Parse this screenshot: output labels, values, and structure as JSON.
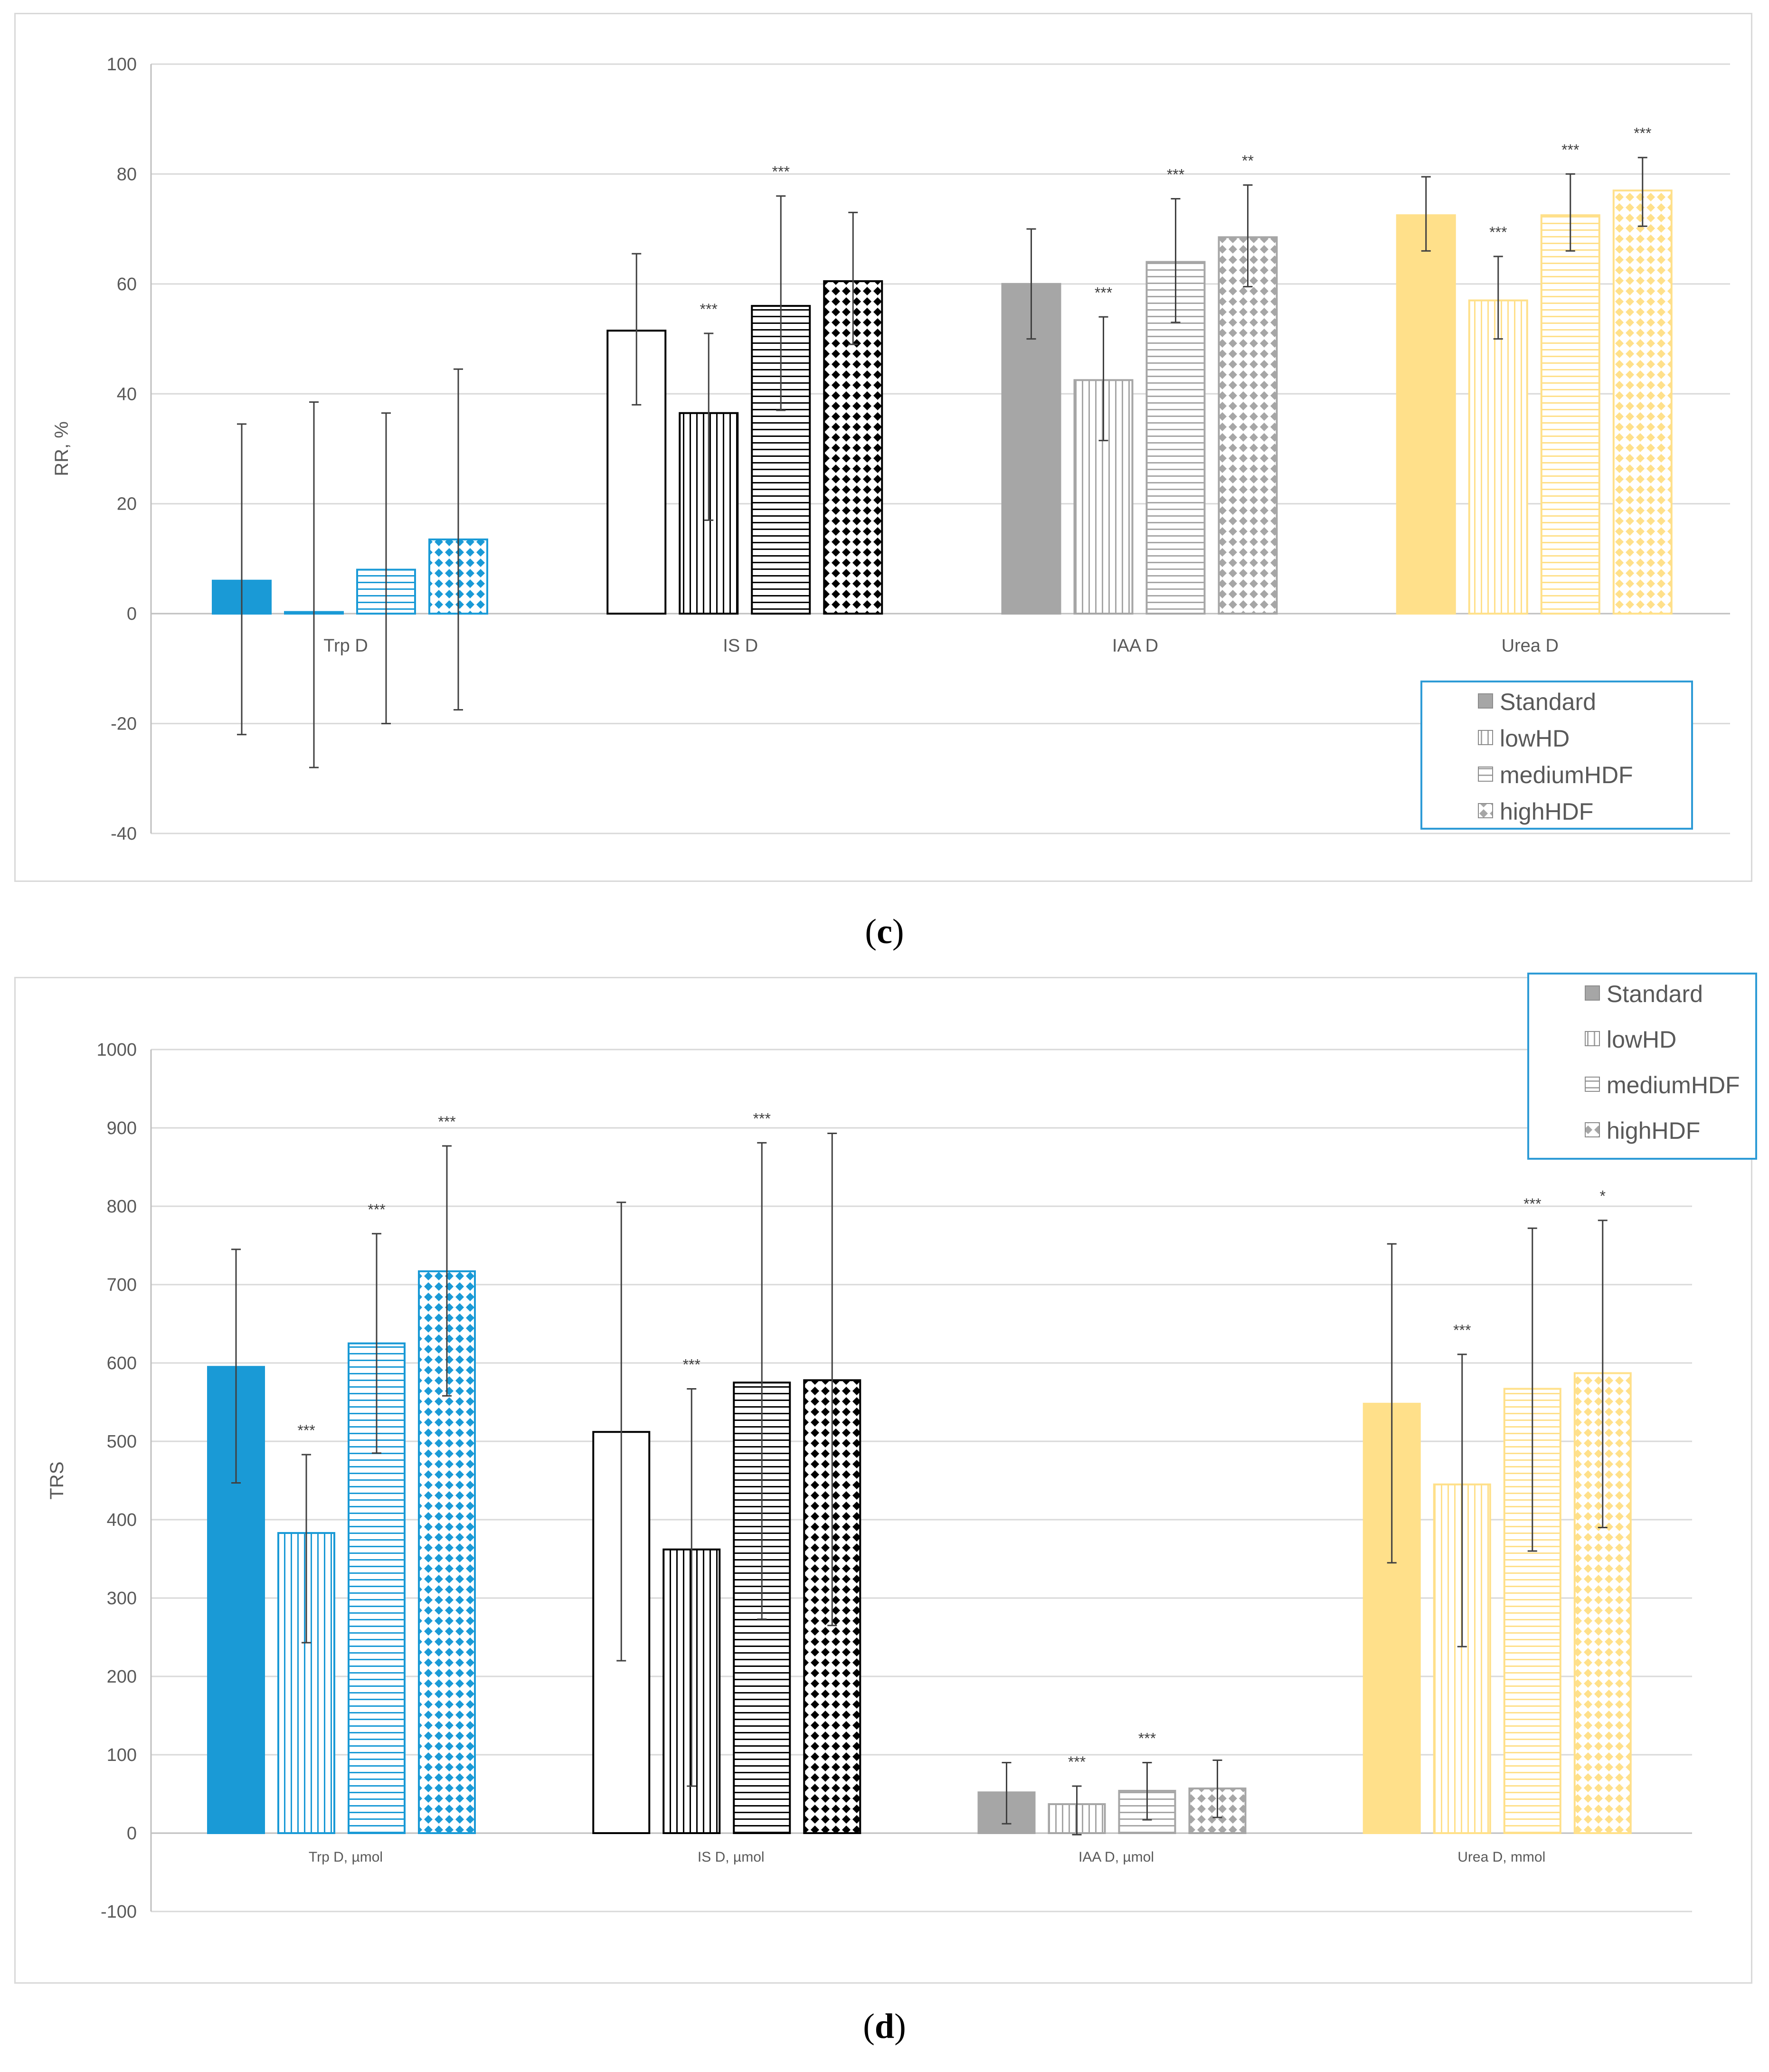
{
  "chart_data": [
    {
      "panel": "c",
      "type": "bar",
      "ylabel": "RR, %",
      "ylim": [
        -40,
        100
      ],
      "yticks": [
        100,
        80,
        60,
        40,
        20,
        0,
        -20,
        -40
      ],
      "grid": true,
      "legend_placement": "bottom-right",
      "categories": [
        "Trp D",
        "IS D",
        "IAA D",
        "Urea D"
      ],
      "category_colors": [
        "#1a9ad6",
        "#000000",
        "#a6a6a6",
        "#ffe08a"
      ],
      "series": [
        {
          "name": "Standard",
          "values": [
            6,
            51.5,
            60,
            72.5
          ],
          "err_low": [
            -22,
            38,
            50,
            66
          ],
          "err_high": [
            34.5,
            65.5,
            70,
            79.5
          ],
          "sig": [
            "",
            "",
            "",
            ""
          ]
        },
        {
          "name": "lowHD",
          "values": [
            0.3,
            36.5,
            42.5,
            57
          ],
          "err_low": [
            -28,
            17,
            31.5,
            50
          ],
          "err_high": [
            38.5,
            51,
            54,
            65
          ],
          "sig": [
            "",
            "***",
            "***",
            "***"
          ]
        },
        {
          "name": "mediumHDF",
          "values": [
            8,
            56,
            64,
            72.5
          ],
          "err_low": [
            -20,
            37,
            53,
            66
          ],
          "err_high": [
            36.5,
            76,
            75.5,
            80
          ],
          "sig": [
            "",
            "***",
            "***",
            "***"
          ]
        },
        {
          "name": "highHDF",
          "values": [
            13.5,
            60.5,
            68.5,
            77
          ],
          "err_low": [
            -17.5,
            49,
            59.5,
            70.5
          ],
          "err_high": [
            44.5,
            73,
            78,
            83
          ],
          "sig": [
            "",
            "",
            "**",
            "***"
          ]
        }
      ],
      "legend": [
        "Standard",
        "lowHD",
        "mediumHDF",
        "highHDF"
      ]
    },
    {
      "panel": "d",
      "type": "bar",
      "ylabel": "TRS",
      "ylim": [
        -100,
        1000
      ],
      "yticks": [
        1000,
        900,
        800,
        700,
        600,
        500,
        400,
        300,
        200,
        100,
        0,
        -100
      ],
      "grid": true,
      "legend_placement": "top-right",
      "categories": [
        "Trp D, µmol",
        "IS D, µmol",
        "IAA D, µmol",
        "Urea D, mmol"
      ],
      "category_colors": [
        "#1a9ad6",
        "#000000",
        "#a6a6a6",
        "#ffe08a"
      ],
      "series": [
        {
          "name": "Standard",
          "values": [
            595,
            512,
            52,
            548
          ],
          "err_low": [
            447,
            220,
            12,
            345
          ],
          "err_high": [
            745,
            805,
            90,
            752
          ],
          "sig": [
            "",
            "",
            "",
            ""
          ]
        },
        {
          "name": "lowHD",
          "values": [
            383,
            362,
            37,
            445
          ],
          "err_low": [
            243,
            60,
            -2,
            238
          ],
          "err_high": [
            483,
            567,
            60,
            611
          ],
          "sig": [
            "***",
            "***",
            "***",
            "***"
          ]
        },
        {
          "name": "mediumHDF",
          "values": [
            625,
            575,
            54,
            567
          ],
          "err_low": [
            485,
            273,
            17,
            360
          ],
          "err_high": [
            765,
            881,
            90,
            772
          ],
          "sig": [
            "***",
            "***",
            "***",
            "***"
          ]
        },
        {
          "name": "highHDF",
          "values": [
            717,
            578,
            57,
            587
          ],
          "err_low": [
            558,
            265,
            20,
            390
          ],
          "err_high": [
            877,
            893,
            93,
            782
          ],
          "sig": [
            "***",
            "",
            "",
            "*"
          ]
        }
      ],
      "legend": [
        "Standard",
        "lowHD",
        "mediumHDF",
        "highHDF"
      ]
    }
  ],
  "captions": {
    "c": {
      "open": "(",
      "letter": "c",
      "close": ")"
    },
    "d": {
      "open": "(",
      "letter": "d",
      "close": ")"
    }
  }
}
